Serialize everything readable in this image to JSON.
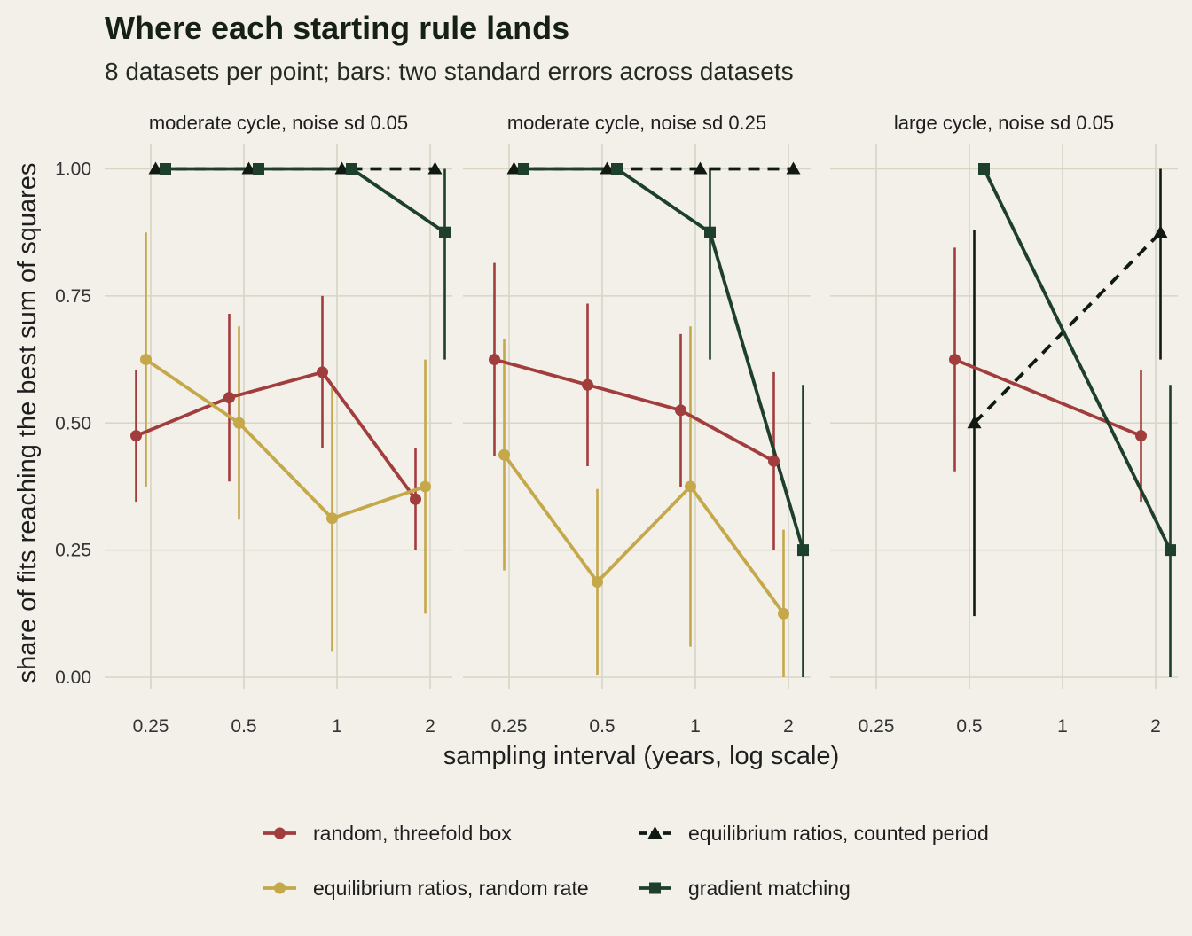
{
  "chart_data": {
    "type": "line",
    "title": "Where each starting rule lands",
    "subtitle": "8 datasets per point; bars: two standard errors across datasets",
    "xlabel": "sampling interval (years, log scale)",
    "ylabel": "share of fits reaching the best sum of squares",
    "x_scale": "log",
    "x_ticks": [
      0.25,
      0.5,
      1,
      2
    ],
    "x_tick_labels": [
      "0.25",
      "0.5",
      "1",
      "2"
    ],
    "y_ticks": [
      0,
      0.25,
      0.5,
      0.75,
      1
    ],
    "y_tick_labels": [
      "0.00",
      "0.25",
      "0.50",
      "0.75",
      "1.00"
    ],
    "ylim": [
      0,
      1
    ],
    "grid": true,
    "legend_position": "bottom",
    "series": [
      {
        "key": "random",
        "name": "random, threefold box",
        "color": "#a13d3d",
        "marker": "circle",
        "dashed": false
      },
      {
        "key": "eq_random",
        "name": "equilibrium ratios, random rate",
        "color": "#c4a84a",
        "marker": "circle",
        "dashed": false
      },
      {
        "key": "eq_counted",
        "name": "equilibrium ratios, counted period",
        "color": "#111a12",
        "marker": "triangle",
        "dashed": true
      },
      {
        "key": "gradient",
        "name": "gradient matching",
        "color": "#1d3f2b",
        "marker": "square",
        "dashed": false
      }
    ],
    "panels": [
      {
        "label": "moderate cycle, noise sd 0.05",
        "series": {
          "random": [
            {
              "x": 0.25,
              "y": 0.475,
              "lo": 0.345,
              "hi": 0.605
            },
            {
              "x": 0.5,
              "y": 0.55,
              "lo": 0.385,
              "hi": 0.715
            },
            {
              "x": 1,
              "y": 0.6,
              "lo": 0.45,
              "hi": 0.75
            },
            {
              "x": 2,
              "y": 0.35,
              "lo": 0.25,
              "hi": 0.45
            }
          ],
          "eq_random": [
            {
              "x": 0.25,
              "y": 0.625,
              "lo": 0.375,
              "hi": 0.875
            },
            {
              "x": 0.5,
              "y": 0.5,
              "lo": 0.31,
              "hi": 0.69
            },
            {
              "x": 1,
              "y": 0.3125,
              "lo": 0.05,
              "hi": 0.575
            },
            {
              "x": 2,
              "y": 0.375,
              "lo": 0.125,
              "hi": 0.625
            }
          ],
          "eq_counted": [
            {
              "x": 0.25,
              "y": 1.0,
              "lo": 1.0,
              "hi": 1.0
            },
            {
              "x": 0.5,
              "y": 1.0,
              "lo": 1.0,
              "hi": 1.0
            },
            {
              "x": 1,
              "y": 1.0,
              "lo": 1.0,
              "hi": 1.0
            },
            {
              "x": 2,
              "y": 1.0,
              "lo": 1.0,
              "hi": 1.0
            }
          ],
          "gradient": [
            {
              "x": 0.25,
              "y": 1.0,
              "lo": 1.0,
              "hi": 1.0
            },
            {
              "x": 0.5,
              "y": 1.0,
              "lo": 1.0,
              "hi": 1.0
            },
            {
              "x": 1,
              "y": 1.0,
              "lo": 1.0,
              "hi": 1.0
            },
            {
              "x": 2,
              "y": 0.875,
              "lo": 0.625,
              "hi": 1.0
            }
          ]
        }
      },
      {
        "label": "moderate cycle, noise sd 0.25",
        "series": {
          "random": [
            {
              "x": 0.25,
              "y": 0.625,
              "lo": 0.435,
              "hi": 0.815
            },
            {
              "x": 0.5,
              "y": 0.575,
              "lo": 0.415,
              "hi": 0.735
            },
            {
              "x": 1,
              "y": 0.525,
              "lo": 0.375,
              "hi": 0.675
            },
            {
              "x": 2,
              "y": 0.425,
              "lo": 0.25,
              "hi": 0.6
            }
          ],
          "eq_random": [
            {
              "x": 0.25,
              "y": 0.4375,
              "lo": 0.21,
              "hi": 0.665
            },
            {
              "x": 0.5,
              "y": 0.1875,
              "lo": 0.005,
              "hi": 0.37
            },
            {
              "x": 1,
              "y": 0.375,
              "lo": 0.06,
              "hi": 0.69
            },
            {
              "x": 2,
              "y": 0.125,
              "lo": 0.0,
              "hi": 0.29
            }
          ],
          "eq_counted": [
            {
              "x": 0.25,
              "y": 1.0,
              "lo": 1.0,
              "hi": 1.0
            },
            {
              "x": 0.5,
              "y": 1.0,
              "lo": 1.0,
              "hi": 1.0
            },
            {
              "x": 1,
              "y": 1.0,
              "lo": 1.0,
              "hi": 1.0
            },
            {
              "x": 2,
              "y": 1.0,
              "lo": 1.0,
              "hi": 1.0
            }
          ],
          "gradient": [
            {
              "x": 0.25,
              "y": 1.0,
              "lo": 1.0,
              "hi": 1.0
            },
            {
              "x": 0.5,
              "y": 1.0,
              "lo": 1.0,
              "hi": 1.0
            },
            {
              "x": 1,
              "y": 0.875,
              "lo": 0.625,
              "hi": 1.0
            },
            {
              "x": 2,
              "y": 0.25,
              "lo": 0.0,
              "hi": 0.575
            }
          ]
        }
      },
      {
        "label": "large cycle, noise sd 0.05",
        "series": {
          "random": [
            {
              "x": 0.5,
              "y": 0.625,
              "lo": 0.405,
              "hi": 0.845
            },
            {
              "x": 2,
              "y": 0.475,
              "lo": 0.345,
              "hi": 0.605
            }
          ],
          "eq_random": [],
          "eq_counted": [
            {
              "x": 0.5,
              "y": 0.5,
              "lo": 0.12,
              "hi": 0.88
            },
            {
              "x": 2,
              "y": 0.875,
              "lo": 0.625,
              "hi": 1.0
            }
          ],
          "gradient": [
            {
              "x": 0.5,
              "y": 1.0,
              "lo": 1.0,
              "hi": 1.0
            },
            {
              "x": 2,
              "y": 0.25,
              "lo": 0.0,
              "hi": 0.575
            }
          ]
        }
      }
    ]
  }
}
